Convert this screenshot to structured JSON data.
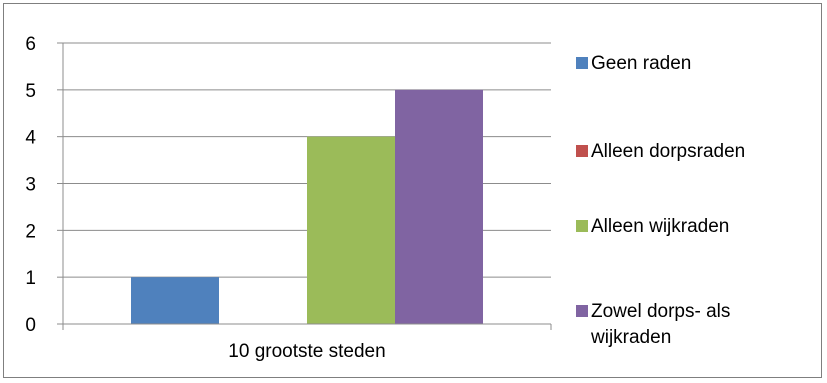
{
  "chart_data": {
    "type": "bar",
    "categories": [
      "10 grootste steden"
    ],
    "series": [
      {
        "name": "Geen raden",
        "values": [
          1
        ],
        "color": "#4f81bd"
      },
      {
        "name": "Alleen dorpsraden",
        "values": [
          0
        ],
        "color": "#c0504d"
      },
      {
        "name": "Alleen wijkraden",
        "values": [
          4
        ],
        "color": "#9bbb59"
      },
      {
        "name": "Zowel dorps- als wijkraden",
        "values": [
          5
        ],
        "color": "#8064a2"
      }
    ],
    "y_ticks": [
      "0",
      "1",
      "2",
      "3",
      "4",
      "5",
      "6"
    ],
    "ylim": [
      0,
      6
    ],
    "grid": true,
    "legend_position": "right",
    "legend_lines": [
      [
        "Geen raden"
      ],
      [
        "Alleen dorpsraden"
      ],
      [
        "Alleen wijkraden"
      ],
      [
        "Zowel dorps- als",
        "wijkraden"
      ]
    ]
  }
}
